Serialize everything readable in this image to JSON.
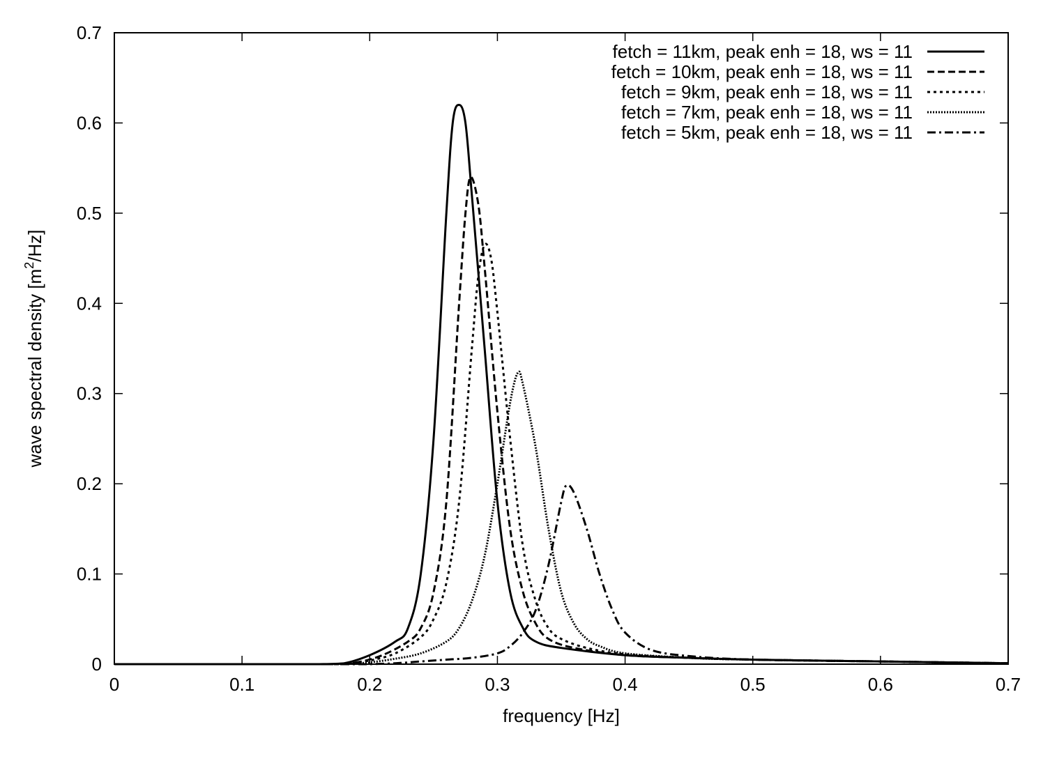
{
  "chart_data": {
    "type": "line",
    "title": "",
    "xlabel": "frequency [Hz]",
    "ylabel_parts": [
      "wave spectral density [m",
      "2",
      "/Hz]"
    ],
    "xlim": [
      0,
      0.7
    ],
    "ylim": [
      0,
      0.7
    ],
    "xticks": [
      "0",
      "0.1",
      "0.2",
      "0.3",
      "0.4",
      "0.5",
      "0.6",
      "0.7"
    ],
    "yticks": [
      "0",
      "0.1",
      "0.2",
      "0.3",
      "0.4",
      "0.5",
      "0.6",
      "0.7"
    ],
    "grid": false,
    "legend_position": "top-right",
    "line_color": "#000000",
    "series": [
      {
        "name": "fetch = 11km, peak enh = 18, ws = 11",
        "style": "solid",
        "peak_freq": 0.27,
        "peak_value": 0.62,
        "x": [
          0.16,
          0.18,
          0.2,
          0.22,
          0.23,
          0.24,
          0.25,
          0.26,
          0.265,
          0.27,
          0.275,
          0.28,
          0.29,
          0.3,
          0.31,
          0.32,
          0.33,
          0.35,
          0.4,
          0.45,
          0.5,
          0.6,
          0.7
        ],
        "y": [
          0,
          0.001,
          0.01,
          0.025,
          0.04,
          0.1,
          0.25,
          0.5,
          0.6,
          0.62,
          0.6,
          0.52,
          0.35,
          0.18,
          0.08,
          0.04,
          0.025,
          0.018,
          0.01,
          0.007,
          0.005,
          0.003,
          0.001
        ]
      },
      {
        "name": "fetch = 10km, peak enh = 18, ws = 11",
        "style": "dashed",
        "peak_freq": 0.279,
        "peak_value": 0.54,
        "x": [
          0.17,
          0.19,
          0.21,
          0.23,
          0.24,
          0.25,
          0.26,
          0.27,
          0.275,
          0.279,
          0.285,
          0.29,
          0.3,
          0.31,
          0.32,
          0.33,
          0.34,
          0.36,
          0.4,
          0.45,
          0.5,
          0.6,
          0.7
        ],
        "y": [
          0,
          0.002,
          0.01,
          0.025,
          0.04,
          0.08,
          0.18,
          0.4,
          0.5,
          0.54,
          0.51,
          0.44,
          0.28,
          0.15,
          0.08,
          0.045,
          0.028,
          0.018,
          0.01,
          0.007,
          0.005,
          0.003,
          0.001
        ]
      },
      {
        "name": "fetch = 9km, peak enh = 18, ws = 11",
        "style": "dotted",
        "peak_freq": 0.29,
        "peak_value": 0.465,
        "x": [
          0.18,
          0.2,
          0.22,
          0.24,
          0.25,
          0.26,
          0.27,
          0.28,
          0.285,
          0.29,
          0.295,
          0.3,
          0.31,
          0.32,
          0.33,
          0.34,
          0.35,
          0.37,
          0.4,
          0.45,
          0.5,
          0.6,
          0.7
        ],
        "y": [
          0,
          0.004,
          0.012,
          0.03,
          0.05,
          0.09,
          0.18,
          0.35,
          0.43,
          0.465,
          0.45,
          0.39,
          0.25,
          0.13,
          0.07,
          0.04,
          0.028,
          0.018,
          0.011,
          0.007,
          0.005,
          0.003,
          0.001
        ]
      },
      {
        "name": "fetch = 7km, peak enh = 18, ws = 11",
        "style": "densely-dotted",
        "peak_freq": 0.316,
        "peak_value": 0.323,
        "x": [
          0.18,
          0.2,
          0.22,
          0.24,
          0.26,
          0.27,
          0.28,
          0.29,
          0.3,
          0.31,
          0.316,
          0.32,
          0.33,
          0.34,
          0.35,
          0.36,
          0.37,
          0.38,
          0.4,
          0.45,
          0.5,
          0.6,
          0.7
        ],
        "y": [
          0,
          0.002,
          0.006,
          0.012,
          0.025,
          0.04,
          0.07,
          0.12,
          0.2,
          0.29,
          0.323,
          0.31,
          0.24,
          0.15,
          0.08,
          0.045,
          0.028,
          0.02,
          0.012,
          0.007,
          0.005,
          0.003,
          0.001
        ]
      },
      {
        "name": "fetch = 5km, peak enh = 18, ws = 11",
        "style": "dash-dot",
        "peak_freq": 0.354,
        "peak_value": 0.198,
        "x": [
          0.2,
          0.22,
          0.24,
          0.26,
          0.28,
          0.3,
          0.31,
          0.32,
          0.33,
          0.34,
          0.35,
          0.354,
          0.36,
          0.37,
          0.38,
          0.39,
          0.4,
          0.42,
          0.45,
          0.5,
          0.6,
          0.7
        ],
        "y": [
          0,
          0.001,
          0.003,
          0.005,
          0.007,
          0.012,
          0.02,
          0.035,
          0.06,
          0.11,
          0.18,
          0.198,
          0.19,
          0.15,
          0.1,
          0.06,
          0.035,
          0.016,
          0.009,
          0.005,
          0.003,
          0.001
        ]
      }
    ]
  }
}
